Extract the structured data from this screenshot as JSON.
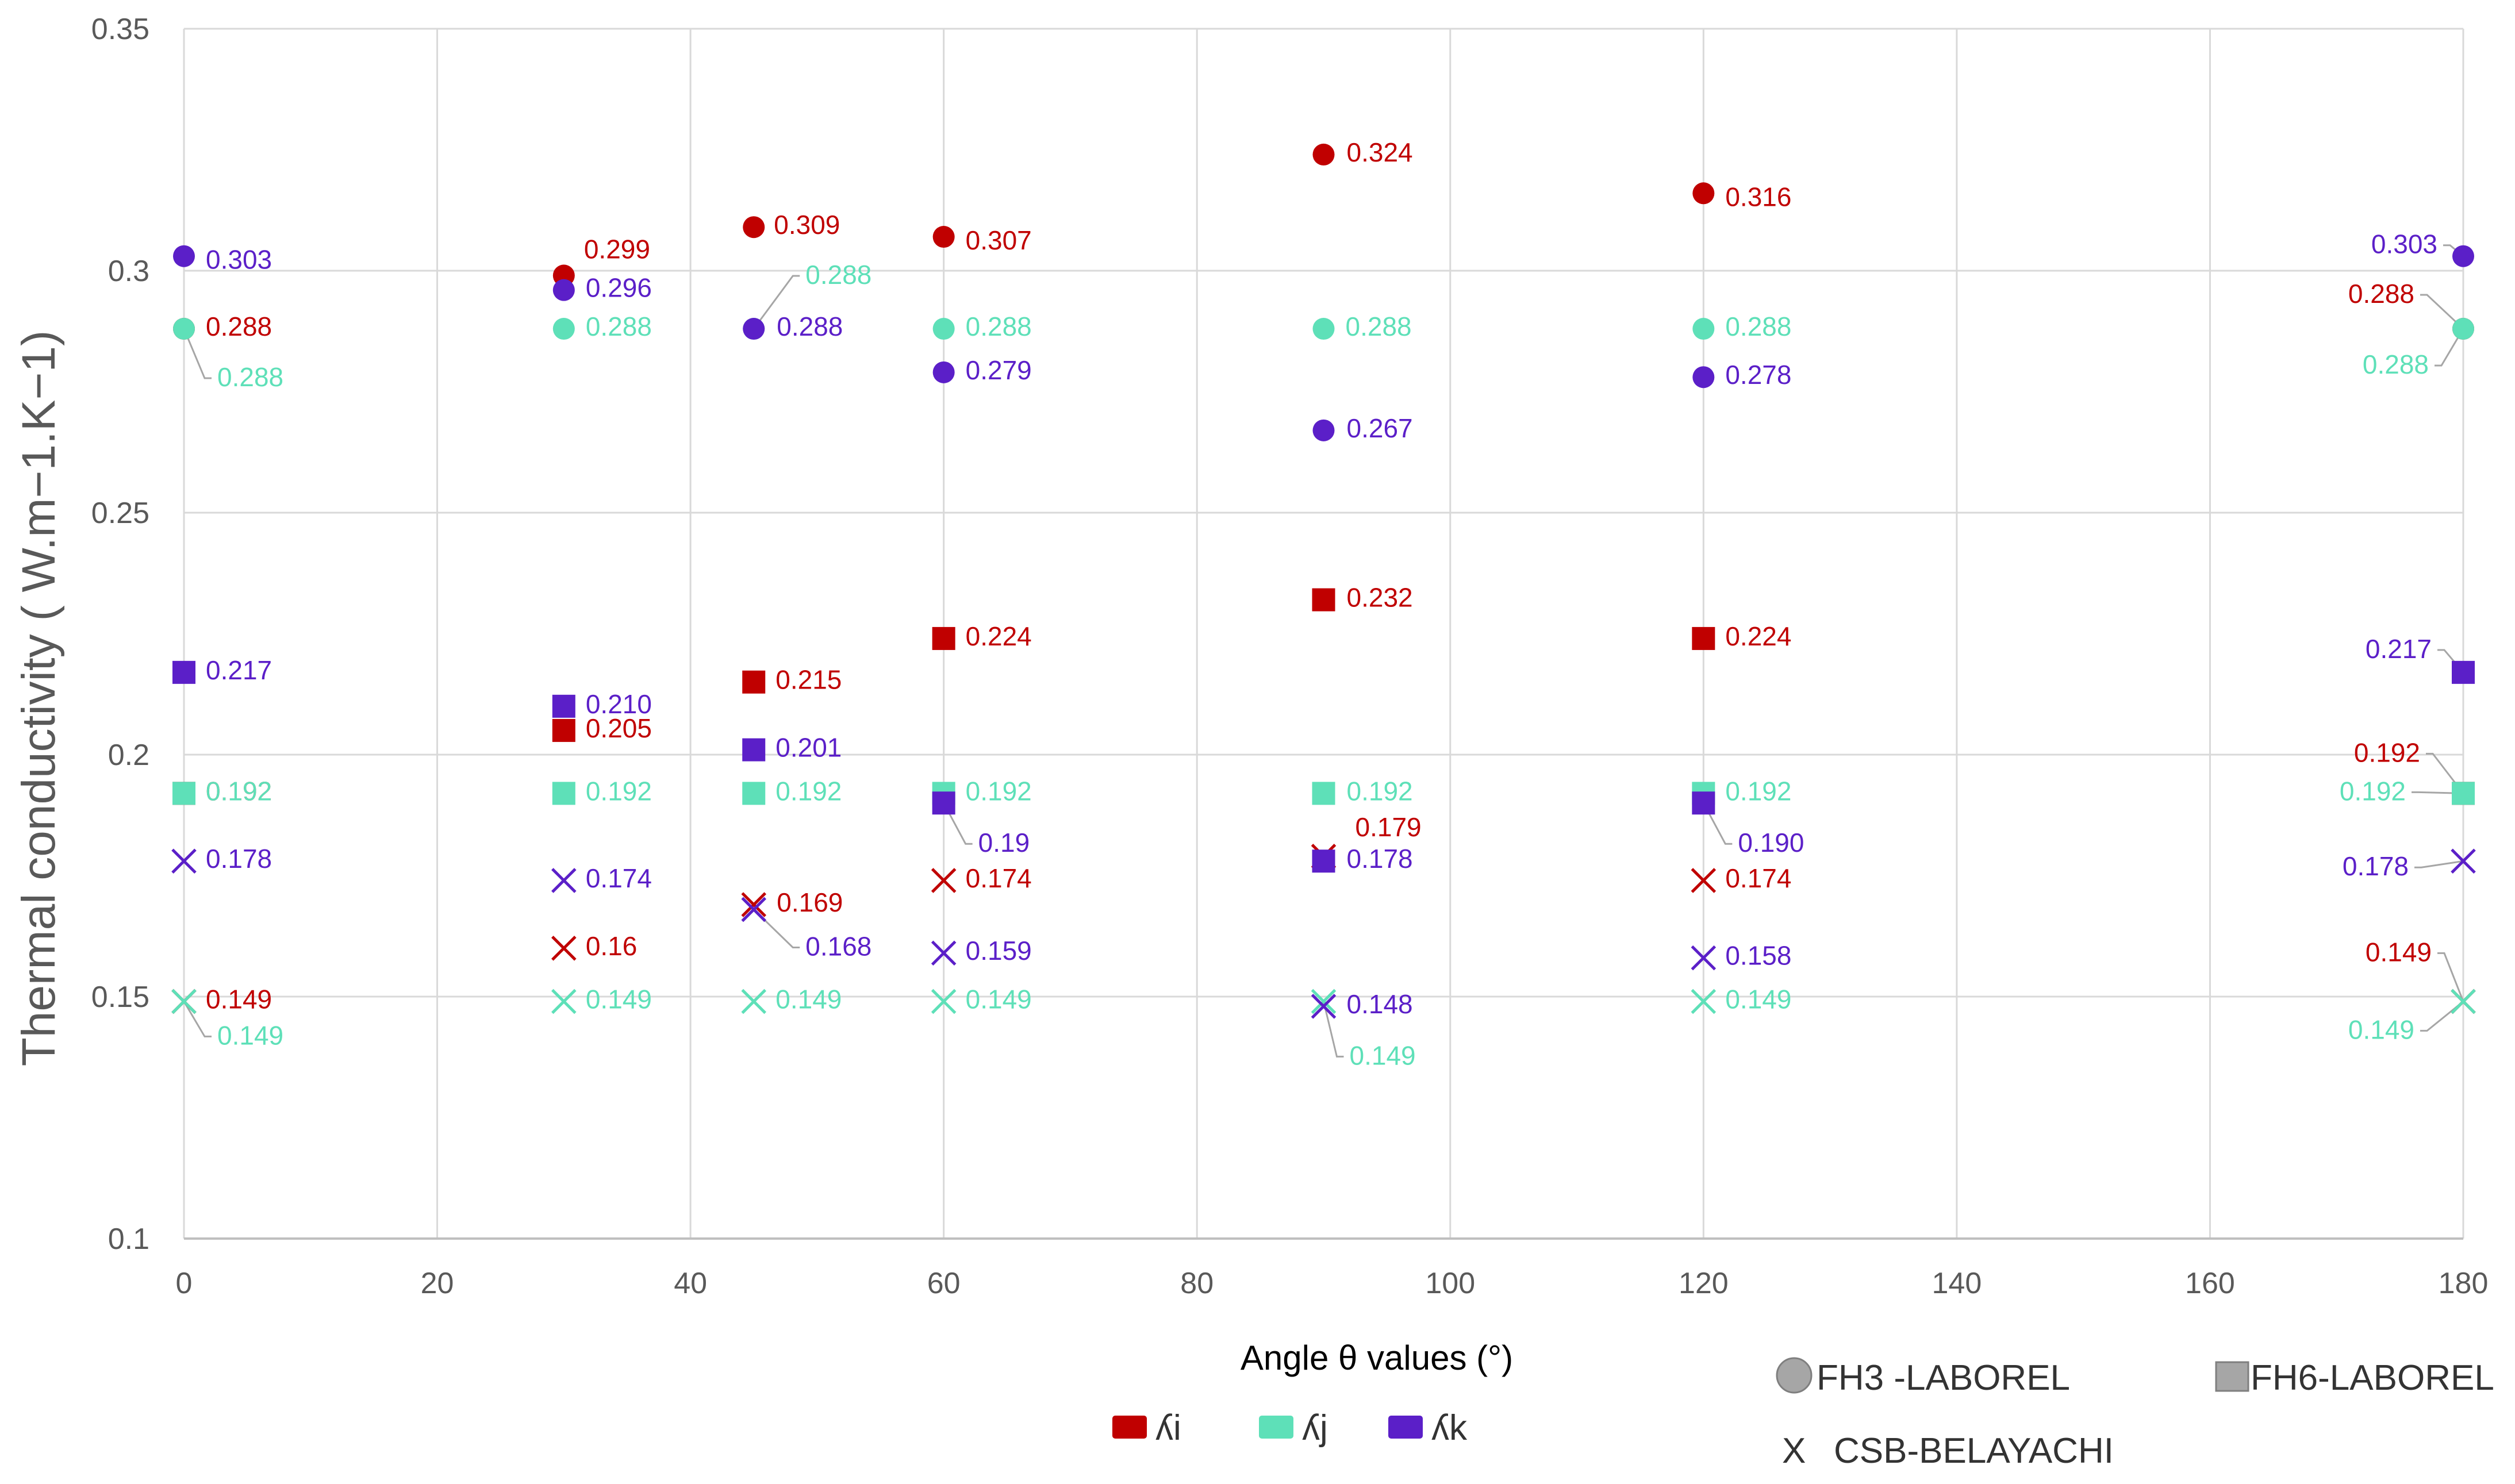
{
  "chart_data": {
    "type": "scatter",
    "title": "",
    "xlabel": "Angle θ values (°)",
    "ylabel": "Thermal conductivity ( W.m−1.K−1)",
    "xlim": [
      0,
      180
    ],
    "ylim": [
      0.1,
      0.35
    ],
    "xticks": [
      "0",
      "20",
      "40",
      "60",
      "80",
      "100",
      "120",
      "140",
      "160",
      "180"
    ],
    "yticks": [
      "0.1",
      "0.15",
      "0.2",
      "0.25",
      "0.3",
      "0.35"
    ],
    "grid": true,
    "colors": {
      "i": "#c00000",
      "j": "#5ee0b8",
      "k": "#5b1fc8",
      "x_legend": "#111111",
      "marker_legend": "#a6a6a6"
    },
    "legend_colors": [
      {
        "key": "i",
        "label": "ʎi"
      },
      {
        "key": "j",
        "label": "ʎj"
      },
      {
        "key": "k",
        "label": "ʎk"
      }
    ],
    "legend_markers": [
      {
        "marker": "circle",
        "label": "FH3 -LABOREL"
      },
      {
        "marker": "square",
        "label": "FH6-LABOREL"
      },
      {
        "marker": "x",
        "symbol": "X",
        "label": "CSB-BELAYACHI"
      }
    ],
    "series": [
      {
        "name": "FH3-LABOREL ʎi",
        "marker": "circle",
        "color_key": "i",
        "points": [
          {
            "x": 0,
            "y": 0.288,
            "label": "0.288"
          },
          {
            "x": 30,
            "y": 0.299,
            "label": "0.299"
          },
          {
            "x": 45,
            "y": 0.309,
            "label": "0.309"
          },
          {
            "x": 60,
            "y": 0.307,
            "label": "0.307"
          },
          {
            "x": 90,
            "y": 0.324,
            "label": "0.324"
          },
          {
            "x": 120,
            "y": 0.316,
            "label": "0.316"
          },
          {
            "x": 180,
            "y": 0.288,
            "label": "0.288"
          }
        ]
      },
      {
        "name": "FH3-LABOREL ʎj",
        "marker": "circle",
        "color_key": "j",
        "points": [
          {
            "x": 0,
            "y": 0.288,
            "label": "0.288"
          },
          {
            "x": 30,
            "y": 0.288,
            "label": "0.288"
          },
          {
            "x": 45,
            "y": 0.288,
            "label": "0.288"
          },
          {
            "x": 60,
            "y": 0.288,
            "label": "0.288"
          },
          {
            "x": 90,
            "y": 0.288,
            "label": "0.288"
          },
          {
            "x": 120,
            "y": 0.288,
            "label": "0.288"
          },
          {
            "x": 180,
            "y": 0.288,
            "label": "0.288"
          }
        ]
      },
      {
        "name": "FH3-LABOREL ʎk",
        "marker": "circle",
        "color_key": "k",
        "points": [
          {
            "x": 0,
            "y": 0.303,
            "label": "0.303"
          },
          {
            "x": 30,
            "y": 0.296,
            "label": "0.296"
          },
          {
            "x": 45,
            "y": 0.288,
            "label": "0.288"
          },
          {
            "x": 60,
            "y": 0.279,
            "label": "0.279"
          },
          {
            "x": 90,
            "y": 0.267,
            "label": "0.267"
          },
          {
            "x": 120,
            "y": 0.278,
            "label": "0.278"
          },
          {
            "x": 180,
            "y": 0.303,
            "label": "0.303"
          }
        ]
      },
      {
        "name": "FH6-LABOREL ʎi",
        "marker": "square",
        "color_key": "i",
        "points": [
          {
            "x": 0,
            "y": 0.192,
            "label": "0.192"
          },
          {
            "x": 30,
            "y": 0.205,
            "label": "0.205"
          },
          {
            "x": 45,
            "y": 0.215,
            "label": "0.215"
          },
          {
            "x": 60,
            "y": 0.224,
            "label": "0.224"
          },
          {
            "x": 90,
            "y": 0.232,
            "label": "0.232"
          },
          {
            "x": 120,
            "y": 0.224,
            "label": "0.224"
          },
          {
            "x": 180,
            "y": 0.192,
            "label": "0.192"
          }
        ]
      },
      {
        "name": "FH6-LABOREL ʎj",
        "marker": "square",
        "color_key": "j",
        "points": [
          {
            "x": 0,
            "y": 0.192,
            "label": "0.192"
          },
          {
            "x": 30,
            "y": 0.192,
            "label": "0.192"
          },
          {
            "x": 45,
            "y": 0.192,
            "label": "0.192"
          },
          {
            "x": 60,
            "y": 0.192,
            "label": "0.192"
          },
          {
            "x": 90,
            "y": 0.192,
            "label": "0.192"
          },
          {
            "x": 120,
            "y": 0.192,
            "label": "0.192"
          },
          {
            "x": 180,
            "y": 0.192,
            "label": "0.192"
          }
        ]
      },
      {
        "name": "FH6-LABOREL ʎk",
        "marker": "square",
        "color_key": "k",
        "points": [
          {
            "x": 0,
            "y": 0.217,
            "label": "0.217"
          },
          {
            "x": 30,
            "y": 0.21,
            "label": "0.210"
          },
          {
            "x": 45,
            "y": 0.201,
            "label": "0.201"
          },
          {
            "x": 60,
            "y": 0.19,
            "label": "0.19"
          },
          {
            "x": 90,
            "y": 0.178,
            "label": "0.178"
          },
          {
            "x": 120,
            "y": 0.19,
            "label": "0.190"
          },
          {
            "x": 180,
            "y": 0.217,
            "label": "0.217"
          }
        ]
      },
      {
        "name": "CSB-BELAYACHI ʎi",
        "marker": "x",
        "color_key": "i",
        "points": [
          {
            "x": 0,
            "y": 0.149,
            "label": "0.149"
          },
          {
            "x": 30,
            "y": 0.16,
            "label": "0.16"
          },
          {
            "x": 45,
            "y": 0.169,
            "label": "0.169"
          },
          {
            "x": 60,
            "y": 0.174,
            "label": "0.174"
          },
          {
            "x": 90,
            "y": 0.179,
            "label": "0.179"
          },
          {
            "x": 120,
            "y": 0.174,
            "label": "0.174"
          },
          {
            "x": 180,
            "y": 0.149,
            "label": "0.149"
          }
        ]
      },
      {
        "name": "CSB-BELAYACHI ʎj",
        "marker": "x",
        "color_key": "j",
        "points": [
          {
            "x": 0,
            "y": 0.149,
            "label": "0.149"
          },
          {
            "x": 30,
            "y": 0.149,
            "label": "0.149"
          },
          {
            "x": 45,
            "y": 0.149,
            "label": "0.149"
          },
          {
            "x": 60,
            "y": 0.149,
            "label": "0.149"
          },
          {
            "x": 90,
            "y": 0.149,
            "label": "0.149"
          },
          {
            "x": 120,
            "y": 0.149,
            "label": "0.149"
          },
          {
            "x": 180,
            "y": 0.149,
            "label": "0.149"
          }
        ]
      },
      {
        "name": "CSB-BELAYACHI ʎk",
        "marker": "x",
        "color_key": "k",
        "points": [
          {
            "x": 0,
            "y": 0.178,
            "label": "0.178"
          },
          {
            "x": 30,
            "y": 0.174,
            "label": "0.174"
          },
          {
            "x": 45,
            "y": 0.168,
            "label": "0.168"
          },
          {
            "x": 60,
            "y": 0.159,
            "label": "0.159"
          },
          {
            "x": 90,
            "y": 0.148,
            "label": "0.148"
          },
          {
            "x": 120,
            "y": 0.158,
            "label": "0.158"
          },
          {
            "x": 180,
            "y": 0.178,
            "label": "0.178"
          }
        ]
      }
    ]
  }
}
